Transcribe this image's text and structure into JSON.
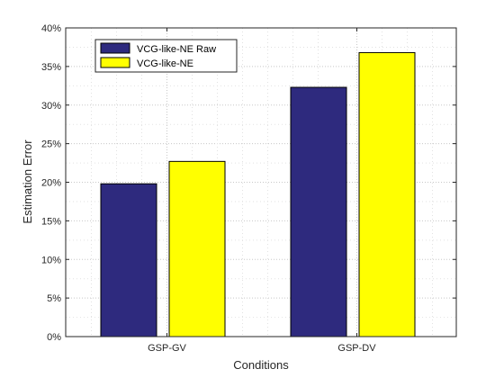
{
  "chart_data": {
    "type": "bar",
    "title": "",
    "xlabel": "Conditions",
    "ylabel": "Estimation Error",
    "categories": [
      "GSP-GV",
      "GSP-DV"
    ],
    "series": [
      {
        "name": "VCG-like-NE Raw",
        "values": [
          19.8,
          32.3
        ],
        "color": "#2e2a7e"
      },
      {
        "name": "VCG-like-NE",
        "values": [
          22.7,
          36.8
        ],
        "color": "#ffff00"
      }
    ],
    "ylim": [
      0,
      40
    ],
    "yticks": [
      0,
      5,
      10,
      15,
      20,
      25,
      30,
      35,
      40
    ],
    "ytick_suffix": "%",
    "grid": true,
    "legend_position": "top-left"
  }
}
